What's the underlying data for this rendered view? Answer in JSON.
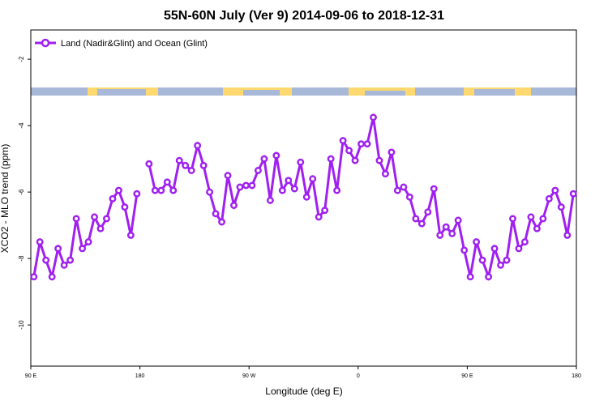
{
  "chart_data": {
    "type": "line",
    "title": "55N-60N July (Ver 9)   2014-09-06 to 2018-12-31",
    "x_label": "Longitude (deg E)",
    "y_label": "XCO2 - MLO trend (ppm)",
    "legend": "top-left",
    "x": [
      92.5,
      97.5,
      102.5,
      107.5,
      112.5,
      117.5,
      122.5,
      127.5,
      132.5,
      137.5,
      142.5,
      147.5,
      152.5,
      157.5,
      162.5,
      167.5,
      172.5,
      177.5,
      182.5,
      187.5,
      192.5,
      197.5,
      202.5,
      207.5,
      212.5,
      217.5,
      222.5,
      227.5,
      232.5,
      237.5,
      242.5,
      247.5,
      252.5,
      257.5,
      262.5,
      267.5,
      272.5,
      277.5,
      282.5,
      287.5,
      292.5,
      297.5,
      302.5,
      307.5,
      312.5,
      317.5,
      322.5,
      327.5,
      332.5,
      337.5,
      342.5,
      347.5,
      352.5,
      357.5,
      362.5,
      367.5,
      372.5,
      377.5,
      382.5,
      387.5,
      392.5,
      397.5,
      402.5,
      407.5,
      412.5,
      417.5,
      422.5,
      427.5,
      432.5,
      437.5,
      442.5,
      447.5,
      452.5,
      457.5,
      462.5,
      467.5,
      472.5,
      477.5,
      482.5,
      487.5,
      492.5,
      497.5,
      502.5,
      507.5,
      512.5,
      517.5,
      522.5,
      527.5,
      532.5,
      537.5
    ],
    "series": [
      {
        "name": "Land (Nadir&Glint) and Ocean (Glint)",
        "color": "#a020f0",
        "values": [
          -8.55,
          -7.5,
          -8.05,
          -8.55,
          -7.7,
          -8.2,
          -8.05,
          -6.8,
          -7.7,
          -7.5,
          -6.75,
          -7.1,
          -6.8,
          -6.2,
          -5.95,
          -6.45,
          -7.3,
          -6.05,
          null,
          -5.15,
          -5.95,
          -5.95,
          -5.7,
          -5.95,
          -5.05,
          -5.2,
          -5.35,
          -4.6,
          -5.2,
          -6.0,
          -6.65,
          -6.9,
          -5.5,
          -6.4,
          -5.85,
          -5.8,
          -5.8,
          -5.35,
          -5.0,
          -6.25,
          -4.9,
          -5.95,
          -5.65,
          -5.9,
          -5.1,
          -6.15,
          -5.6,
          -6.75,
          -6.55,
          -5.0,
          -5.95,
          -4.45,
          -4.75,
          -5.05,
          -4.55,
          -4.55,
          -3.75,
          -5.05,
          -5.45,
          -4.8,
          -5.95,
          -5.85,
          -6.15,
          -6.8,
          -6.95,
          -6.6,
          -5.9,
          -7.3,
          -7.05,
          -7.25,
          -6.85,
          -7.75,
          -8.55,
          -7.5,
          -8.05,
          -8.55,
          -7.7,
          -8.2,
          -8.05,
          -6.8,
          -7.7,
          -7.5,
          -6.75,
          -7.1,
          -6.8,
          -6.2,
          -5.95,
          -6.45,
          -7.3,
          -6.05
        ]
      }
    ],
    "xlim": [
      90,
      540
    ],
    "xticks": [
      {
        "value": 90,
        "label": "90 E"
      },
      {
        "value": 180,
        "label": "180"
      },
      {
        "value": 270,
        "label": "90 W"
      },
      {
        "value": 360,
        "label": "0"
      },
      {
        "value": 450,
        "label": "90 E"
      },
      {
        "value": 540,
        "label": "180"
      }
    ],
    "ylim": [
      -11.24,
      -1.12
    ],
    "yticks": [
      -10,
      -8,
      -6,
      -4,
      -2
    ]
  }
}
